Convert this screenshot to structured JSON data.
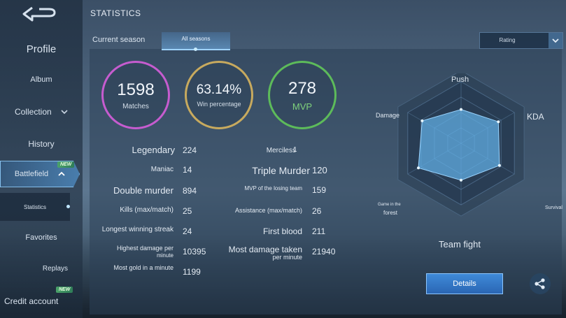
{
  "header": {
    "title": "STATISTICS"
  },
  "sidebar": {
    "profile": "Profile",
    "album": "Album",
    "collection": "Collection",
    "history": "History",
    "battlefield": "Battlefield",
    "statistics": "Statistics",
    "favorites": "Favorites",
    "replays": "Replays",
    "credit_account": "Credit account",
    "new_badge": "NEW"
  },
  "tabs": {
    "current": "Current season",
    "all": "All seasons"
  },
  "rating_select": {
    "value": "Rating"
  },
  "circles": {
    "matches": {
      "value": "1598",
      "label": "Matches",
      "color": "#c65ccf"
    },
    "win": {
      "value": "63.14%",
      "label": "Win percentage",
      "color": "#c8aa5e"
    },
    "mvp": {
      "value": "278",
      "label": "MVP",
      "color": "#5dbb5a"
    }
  },
  "stats_left": [
    {
      "label": "Legendary",
      "value": "224"
    },
    {
      "label": "Maniac",
      "value": "14"
    },
    {
      "label": "Double murder",
      "value": "894"
    },
    {
      "label": "Kills (max/match)",
      "value": "25"
    },
    {
      "label": "Longest winning streak",
      "value": "24"
    },
    {
      "label": "Highest damage per",
      "label2": "minute",
      "value": "10395"
    },
    {
      "label": "Most gold in a minute",
      "value": "1199"
    }
  ],
  "stats_right": [
    {
      "label": "Merciless",
      "value": "1"
    },
    {
      "label": "Triple Murder",
      "value": "120"
    },
    {
      "label": "MVP of the losing team",
      "value": "159"
    },
    {
      "label": "Assistance (max/match)",
      "value": "26"
    },
    {
      "label": "First blood",
      "value": "211"
    },
    {
      "label": "Most damage taken",
      "label2": "per minute",
      "value": "21940"
    }
  ],
  "radar": {
    "push": "Push",
    "kda": "KDA",
    "survival": "Survival",
    "team_fight": "Team fight",
    "forest1": "Game in the",
    "forest2": "forest",
    "damage": "Damage",
    "values": [
      0.55,
      0.7,
      0.72,
      0.6,
      0.8,
      0.73
    ]
  },
  "buttons": {
    "details": "Details"
  }
}
